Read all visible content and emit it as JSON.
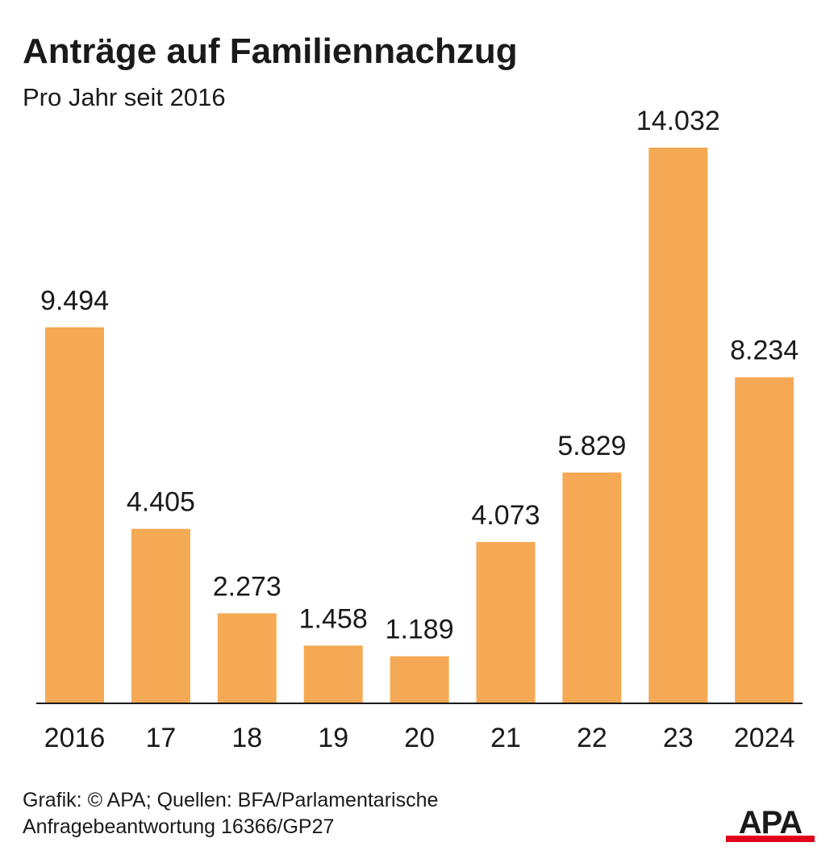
{
  "header": {
    "title": "Anträge auf Familiennachzug",
    "subtitle": "Pro Jahr seit 2016"
  },
  "footer": {
    "source_line1": "Grafik: © APA; Quellen: BFA/Parlamentarische",
    "source_line2": "Anfragebeantwortung 16366/GP27",
    "logo_text": "APA"
  },
  "colors": {
    "bar": "#f5a955",
    "axis": "#1a1a1a",
    "logo_red": "#e2001a",
    "text": "#1a1a1a"
  },
  "chart_data": {
    "type": "bar",
    "title": "Anträge auf Familiennachzug",
    "subtitle": "Pro Jahr seit 2016",
    "categories": [
      "2016",
      "17",
      "18",
      "19",
      "20",
      "21",
      "22",
      "23",
      "2024"
    ],
    "values": [
      9494,
      4405,
      2273,
      1458,
      1189,
      4073,
      5829,
      14032,
      8234
    ],
    "value_labels": [
      "9.494",
      "4.405",
      "2.273",
      "1.458",
      "1.189",
      "4.073",
      "5.829",
      "14.032",
      "8.234"
    ],
    "xlabel": "",
    "ylabel": "",
    "ylim": [
      0,
      14032
    ],
    "grid": false,
    "legend": "none"
  }
}
